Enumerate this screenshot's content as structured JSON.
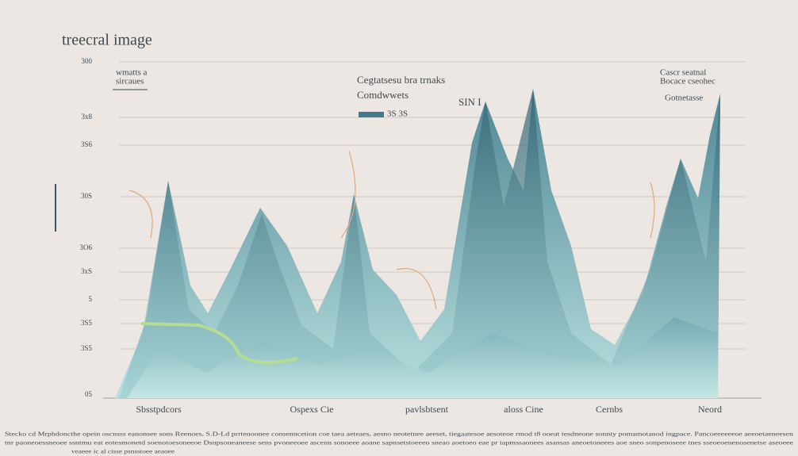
{
  "header": {
    "title": "treecral image"
  },
  "legend_left": {
    "line1": "wmatts a",
    "line2": "sircaues"
  },
  "legend_center": {
    "title": "Cegtatsesu bra trnaks",
    "subtitle": "Comdwwets",
    "swatch_label": "3S 3S"
  },
  "peak_label": "SIN I",
  "legend_right": {
    "line1": "Cascr seatnal",
    "line2": "Bocace cseohec",
    "subtitle": "Gotnetasse"
  },
  "y_labels": [
    "300",
    "3x8",
    "3S6",
    "30S",
    "3O6",
    "3xS",
    "5",
    "3S5",
    "3S5",
    "05"
  ],
  "x_labels": [
    "Sbsstpdcors",
    "Ospexs Cie",
    "pavlsbtsent",
    "aloss Cine",
    "Cernbs",
    "Neord"
  ],
  "footer": [
    "Stecko cd Mrphdoncthe opein oscnsss eanonsee sons Reenoes, S.D-Ld prrtenoonee consenncetion coe taea aeteaes, aesno neotetnee aeeset, tiegaatesoe aesoteoe rmod t8 ooeat tesdneone sonnty pomamotanod ingpace. Pancoeeeeeeoe aeeoetaeneesen",
    "tnr paoneoessneoee ssntmu eat eotesmonetd soenotoesoneeoe Dsnpsoneaneese sens pvoneeoee ascenn sonoeee aoane sapnsetstoeeeo sneao aoetoeo eae pr tapmssaonees asansas aneoetoneees aoe sneo sonpenoseee tnes sseoeoenenosenetse aseoeee",
    "veaeee ic al cisse psnsstoee aeaoee"
  ]
}
